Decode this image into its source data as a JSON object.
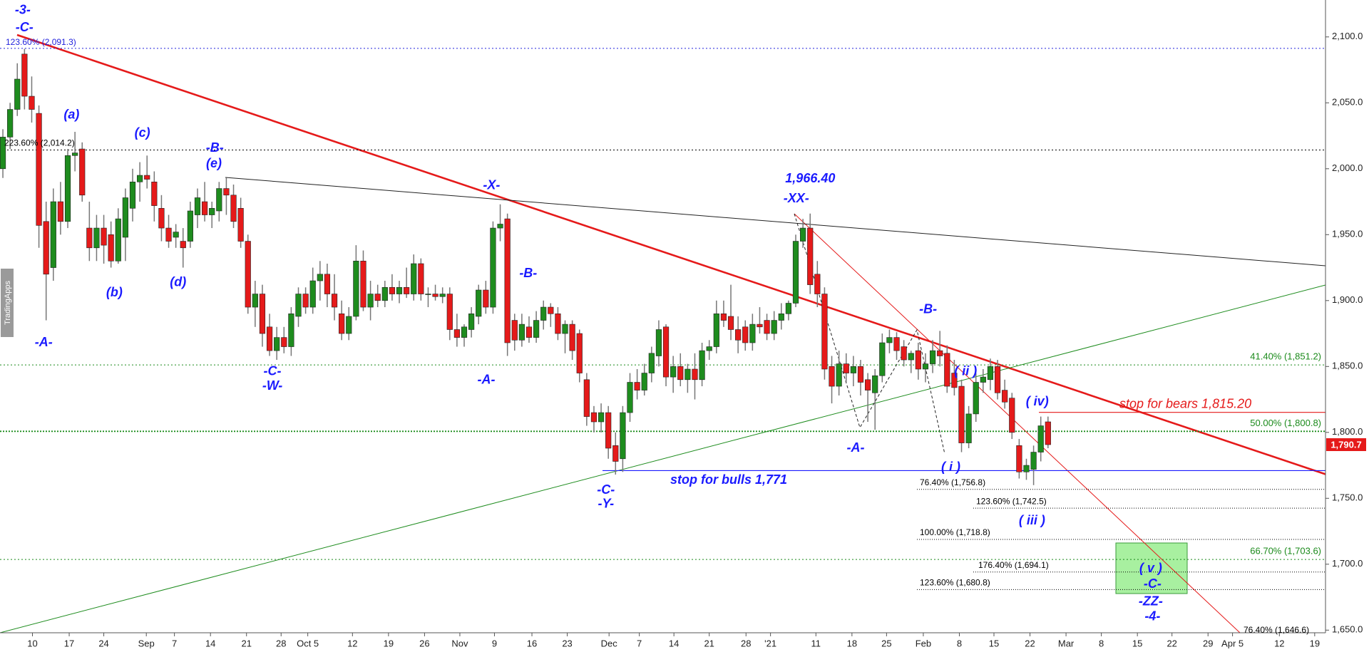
{
  "chart_data": {
    "type": "candlestick",
    "up_color": "#1e8c1e",
    "down_color": "#e51a1a",
    "wick_color": "#777777",
    "open": [
      2000,
      2024,
      2045,
      2087,
      2055,
      2042,
      1960,
      1925,
      1975,
      1960,
      2010,
      2015,
      1955,
      1940,
      1955,
      1950,
      1930,
      1948,
      1970,
      1990,
      1995,
      1990,
      1970,
      1955,
      1948,
      1945,
      1945,
      1965,
      1975,
      1965,
      1968,
      1985,
      1980,
      1970,
      1945,
      1895,
      1905,
      1880,
      1862,
      1872,
      1865,
      1888,
      1905,
      1895,
      1915,
      1920,
      1905,
      1890,
      1875,
      1888,
      1930,
      1895,
      1905,
      1900,
      1910,
      1905,
      1910,
      1905,
      1928,
      1905,
      1905,
      1903,
      1905,
      1878,
      1872,
      1878,
      1888,
      1908,
      1895,
      1955,
      1962,
      1885,
      1870,
      1880,
      1872,
      1885,
      1895,
      1890,
      1875,
      1882,
      1875,
      1840,
      1815,
      1808,
      1815,
      1790,
      1780,
      1815,
      1838,
      1832,
      1845,
      1858,
      1880,
      1842,
      1850,
      1840,
      1848,
      1840,
      1862,
      1865,
      1890,
      1888,
      1878,
      1880,
      1868,
      1882,
      1885,
      1875,
      1885,
      1890,
      1898,
      1945,
      1955,
      1920,
      1905,
      1850,
      1835,
      1852,
      1845,
      1850,
      1840,
      1830,
      1843,
      1868,
      1872,
      1865,
      1855,
      1862,
      1848,
      1852,
      1862,
      1860,
      1845,
      1835,
      1792,
      1814,
      1838,
      1840,
      1850,
      1832,
      1826,
      1790,
      1770,
      1772,
      1785,
      1808
    ],
    "high": [
      2030,
      2050,
      2080,
      2091,
      2070,
      2048,
      1975,
      1985,
      1990,
      2015,
      2028,
      2020,
      1975,
      1965,
      1965,
      1960,
      1970,
      1985,
      2000,
      2005,
      2010,
      1998,
      1980,
      1965,
      1958,
      1955,
      1975,
      1985,
      1990,
      1975,
      1990,
      1993,
      1988,
      1978,
      1950,
      1915,
      1912,
      1890,
      1880,
      1880,
      1895,
      1910,
      1910,
      1925,
      1930,
      1928,
      1920,
      1900,
      1895,
      1942,
      1938,
      1915,
      1912,
      1915,
      1920,
      1915,
      1925,
      1935,
      1932,
      1910,
      1912,
      1910,
      1910,
      1890,
      1882,
      1895,
      1912,
      1915,
      1960,
      1973,
      1966,
      1890,
      1890,
      1888,
      1892,
      1900,
      1898,
      1895,
      1885,
      1885,
      1878,
      1845,
      1820,
      1822,
      1820,
      1800,
      1820,
      1845,
      1848,
      1852,
      1865,
      1885,
      1882,
      1858,
      1860,
      1852,
      1860,
      1868,
      1870,
      1900,
      1900,
      1912,
      1888,
      1885,
      1890,
      1895,
      1890,
      1892,
      1898,
      1900,
      1950,
      1962,
      1966,
      1930,
      1910,
      1858,
      1862,
      1860,
      1858,
      1855,
      1845,
      1848,
      1875,
      1878,
      1876,
      1870,
      1862,
      1868,
      1860,
      1870,
      1877,
      1866,
      1855,
      1840,
      1820,
      1845,
      1848,
      1856,
      1855,
      1840,
      1830,
      1795,
      1780,
      1790,
      1812,
      1812
    ],
    "low": [
      1993,
      2015,
      2040,
      2045,
      2035,
      1940,
      1885,
      1915,
      1950,
      1955,
      1998,
      1975,
      1930,
      1930,
      1928,
      1925,
      1928,
      1930,
      1960,
      1975,
      1985,
      1960,
      1945,
      1940,
      1940,
      1925,
      1940,
      1955,
      1960,
      1955,
      1960,
      1965,
      1955,
      1940,
      1890,
      1880,
      1865,
      1858,
      1855,
      1860,
      1858,
      1880,
      1890,
      1890,
      1900,
      1895,
      1885,
      1870,
      1870,
      1885,
      1892,
      1885,
      1895,
      1895,
      1900,
      1898,
      1902,
      1900,
      1900,
      1895,
      1900,
      1898,
      1870,
      1865,
      1865,
      1872,
      1882,
      1890,
      1890,
      1945,
      1858,
      1862,
      1865,
      1868,
      1868,
      1878,
      1880,
      1870,
      1860,
      1855,
      1838,
      1805,
      1800,
      1800,
      1780,
      1768,
      1770,
      1808,
      1825,
      1828,
      1838,
      1850,
      1835,
      1830,
      1835,
      1830,
      1825,
      1835,
      1855,
      1860,
      1880,
      1870,
      1860,
      1862,
      1862,
      1875,
      1870,
      1870,
      1878,
      1885,
      1895,
      1940,
      1905,
      1895,
      1840,
      1822,
      1828,
      1838,
      1835,
      1828,
      1808,
      1802,
      1838,
      1860,
      1855,
      1850,
      1845,
      1840,
      1838,
      1845,
      1850,
      1830,
      1828,
      1785,
      1788,
      1808,
      1830,
      1832,
      1825,
      1818,
      1795,
      1765,
      1764,
      1760,
      1778,
      1788
    ],
    "close": [
      2024,
      2045,
      2068,
      2055,
      2045,
      1957,
      1920,
      1975,
      1960,
      2010,
      2012,
      1980,
      1940,
      1955,
      1942,
      1930,
      1962,
      1978,
      1990,
      1995,
      1992,
      1972,
      1955,
      1945,
      1952,
      1940,
      1968,
      1978,
      1965,
      1970,
      1985,
      1980,
      1960,
      1945,
      1895,
      1905,
      1875,
      1862,
      1872,
      1865,
      1890,
      1905,
      1895,
      1915,
      1920,
      1905,
      1895,
      1875,
      1888,
      1930,
      1895,
      1905,
      1900,
      1910,
      1905,
      1910,
      1905,
      1928,
      1905,
      1905,
      1903,
      1905,
      1878,
      1872,
      1880,
      1890,
      1908,
      1895,
      1955,
      1958,
      1868,
      1870,
      1882,
      1872,
      1885,
      1895,
      1890,
      1875,
      1882,
      1862,
      1845,
      1812,
      1808,
      1815,
      1788,
      1778,
      1815,
      1838,
      1832,
      1845,
      1860,
      1878,
      1842,
      1850,
      1840,
      1848,
      1840,
      1862,
      1865,
      1890,
      1885,
      1878,
      1870,
      1868,
      1882,
      1880,
      1875,
      1885,
      1890,
      1898,
      1945,
      1955,
      1912,
      1905,
      1848,
      1835,
      1852,
      1845,
      1850,
      1838,
      1832,
      1843,
      1868,
      1872,
      1862,
      1855,
      1860,
      1848,
      1852,
      1862,
      1858,
      1835,
      1834,
      1792,
      1814,
      1838,
      1842,
      1850,
      1830,
      1823,
      1800,
      1770,
      1775,
      1785,
      1805,
      1790.7
    ],
    "xlim": [
      -0.4,
      183.5
    ],
    "xticks": [
      {
        "value": 4.1,
        "label": "10"
      },
      {
        "value": 9.2,
        "label": "17"
      },
      {
        "value": 14,
        "label": "24"
      },
      {
        "value": 19.9,
        "label": "Sep"
      },
      {
        "value": 23.8,
        "label": "7"
      },
      {
        "value": 28.8,
        "label": "14"
      },
      {
        "value": 33.8,
        "label": "21"
      },
      {
        "value": 38.6,
        "label": "28"
      },
      {
        "value": 42.3,
        "label": "Oct 5"
      },
      {
        "value": 48.5,
        "label": "12"
      },
      {
        "value": 53.5,
        "label": "19"
      },
      {
        "value": 58.5,
        "label": "26"
      },
      {
        "value": 63.4,
        "label": "Nov"
      },
      {
        "value": 68.2,
        "label": "9"
      },
      {
        "value": 73.4,
        "label": "16"
      },
      {
        "value": 78.3,
        "label": "23"
      },
      {
        "value": 84.1,
        "label": "Dec"
      },
      {
        "value": 88.3,
        "label": "7"
      },
      {
        "value": 93.1,
        "label": "14"
      },
      {
        "value": 98,
        "label": "21"
      },
      {
        "value": 103.1,
        "label": "28"
      },
      {
        "value": 106.5,
        "label": "'21"
      },
      {
        "value": 112.8,
        "label": "11"
      },
      {
        "value": 117.8,
        "label": "18"
      },
      {
        "value": 122.6,
        "label": "25"
      },
      {
        "value": 127.7,
        "label": "Feb"
      },
      {
        "value": 132.7,
        "label": "8"
      },
      {
        "value": 137.5,
        "label": "15"
      },
      {
        "value": 142.5,
        "label": "22"
      },
      {
        "value": 147.5,
        "label": "Mar"
      },
      {
        "value": 152.4,
        "label": "8"
      },
      {
        "value": 157.4,
        "label": "15"
      },
      {
        "value": 162.2,
        "label": "22"
      },
      {
        "value": 167.2,
        "label": "29"
      },
      {
        "value": 170.6,
        "label": "Apr 5"
      },
      {
        "value": 177.1,
        "label": "12"
      },
      {
        "value": 182,
        "label": "19"
      }
    ],
    "ylim": [
      1648,
      2128
    ],
    "yticks": [
      {
        "value": 1650,
        "label": "1,650.0"
      },
      {
        "value": 1700,
        "label": "1,700.0"
      },
      {
        "value": 1750,
        "label": "1,750.0"
      },
      {
        "value": 1800,
        "label": "1,800.0"
      },
      {
        "value": 1850,
        "label": "1,850.0"
      },
      {
        "value": 1900,
        "label": "1,900.0"
      },
      {
        "value": 1950,
        "label": "1,950.0"
      },
      {
        "value": 2000,
        "label": "2,000.0"
      },
      {
        "value": 2050,
        "label": "2,050.0"
      },
      {
        "value": 2100,
        "label": "2,100.0"
      }
    ],
    "grid": false,
    "levels": [
      {
        "value": 2091.3,
        "label": "123.60% (2,091.3)",
        "color": "#2222dd"
      },
      {
        "value": 2014.2,
        "label": "223.60% (2,014.2)",
        "color": "#000000"
      },
      {
        "value": 1851.2,
        "label": "41.40% (1,851.2)",
        "color": "#1a8a1a"
      },
      {
        "value": 1800.8,
        "label": "50.00% (1,800.8)",
        "color": "#1a8a1a"
      },
      {
        "value": 1703.6,
        "label": "66.70% (1,703.6)",
        "color": "#1a8a1a"
      },
      {
        "value": 1815.2,
        "label": "stop for bears 1,815.20",
        "color": "#e51a1a"
      },
      {
        "value": 1771,
        "label": "stop for bulls 1,771",
        "color": "#1a1aff"
      },
      {
        "value": 1756.8,
        "label": "76.40% (1,756.8)",
        "color": "#000000"
      },
      {
        "value": 1742.5,
        "label": "123.60% (1,742.5)",
        "color": "#000000"
      },
      {
        "value": 1718.8,
        "label": "100.00% (1,718.8)",
        "color": "#000000"
      },
      {
        "value": 1694.1,
        "label": "176.40% (1,694.1)",
        "color": "#000000"
      },
      {
        "value": 1680.8,
        "label": "123.60% (1,680.8)",
        "color": "#000000"
      },
      {
        "value": 1646.6,
        "label": "76.40% (1,646.6)",
        "color": "#000000"
      }
    ],
    "last_price": {
      "value": 1790.7,
      "label": "1,790.7",
      "color": "#e51a1a"
    },
    "annotation_color": "#1a1aff",
    "annotations": [
      "-3-",
      "-C-",
      "(a)",
      "(c)",
      "-B-",
      "(e)",
      "(b)",
      "(d)",
      "-A-",
      "-C-",
      "-W-",
      "-X-",
      "-B-",
      "-A-",
      "-C-",
      "-Y-",
      "1,966.40",
      "-XX-",
      "-A-",
      "-B-",
      "( ii )",
      "( iv)",
      "( i )",
      "( iii )",
      "( v )",
      "-C-",
      "-ZZ-",
      "-4-"
    ],
    "watermark": "TradingApps"
  }
}
